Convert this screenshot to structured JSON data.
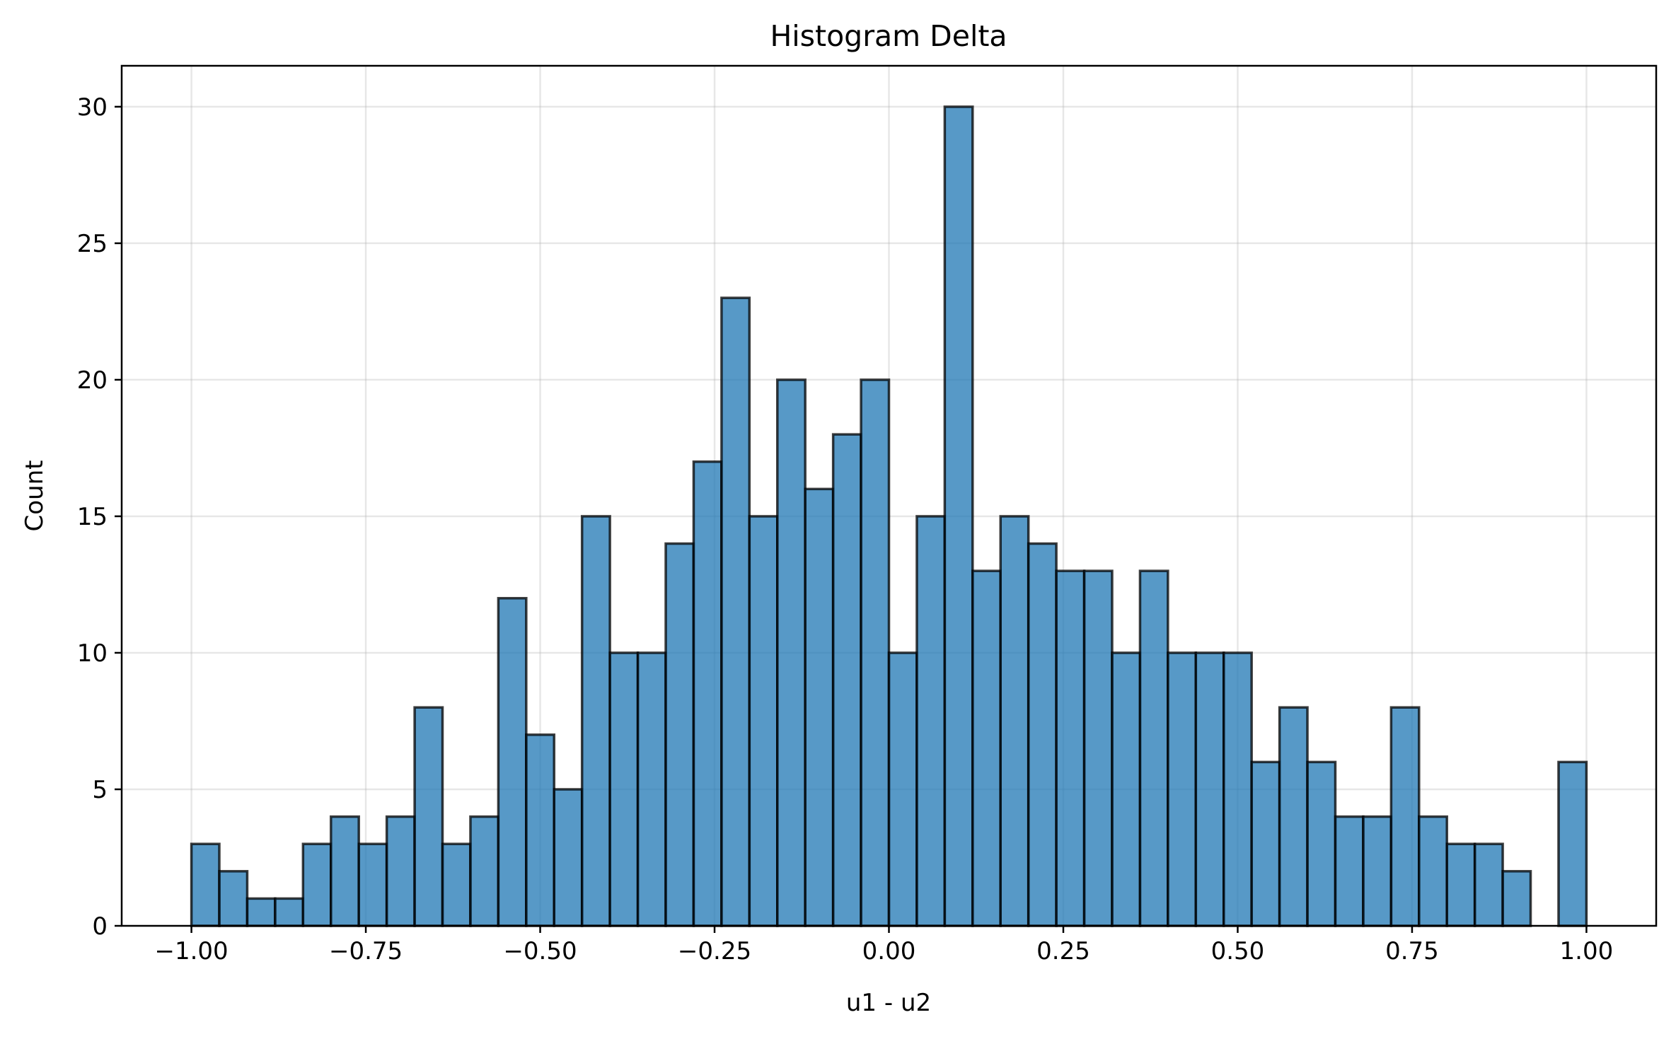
{
  "chart_data": {
    "type": "bar",
    "title": "Histogram Delta",
    "xlabel": "u1 - u2",
    "ylabel": "Count",
    "xlim": [
      -1.1,
      1.1
    ],
    "ylim": [
      0,
      31.5
    ],
    "xticks": [
      -1.0,
      -0.75,
      -0.5,
      -0.25,
      0.0,
      0.25,
      0.5,
      0.75,
      1.0
    ],
    "xtick_labels": [
      "−1.00",
      "−0.75",
      "−0.50",
      "−0.25",
      "0.00",
      "0.25",
      "0.50",
      "0.75",
      "1.00"
    ],
    "yticks": [
      0,
      5,
      10,
      15,
      20,
      25,
      30
    ],
    "ytick_labels": [
      "0",
      "5",
      "10",
      "15",
      "20",
      "25",
      "30"
    ],
    "grid": true,
    "bin_start": -1.0,
    "bin_end": 1.0,
    "bin_count": 50,
    "counts": [
      3,
      2,
      1,
      1,
      3,
      4,
      3,
      4,
      8,
      3,
      4,
      12,
      7,
      5,
      15,
      10,
      10,
      14,
      17,
      23,
      15,
      20,
      16,
      18,
      20,
      10,
      15,
      30,
      13,
      15,
      14,
      13,
      13,
      10,
      13,
      10,
      10,
      10,
      6,
      8,
      6,
      4,
      4,
      8,
      4,
      3,
      3,
      2,
      0,
      6
    ],
    "colors": {
      "bar_fill": "#1f77b4",
      "bar_edge": "#000000"
    }
  }
}
